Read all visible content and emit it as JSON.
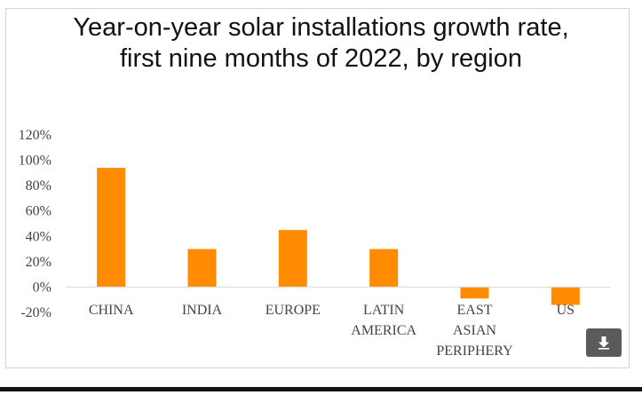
{
  "chart_data": {
    "type": "bar",
    "title": "Year-on-year solar installations growth rate, first nine months of 2022, by region",
    "categories": [
      "CHINA",
      "INDIA",
      "EUROPE",
      "LATIN AMERICA",
      "EAST ASIAN PERIPHERY",
      "US"
    ],
    "category_lines": [
      [
        "CHINA"
      ],
      [
        "INDIA"
      ],
      [
        "EUROPE"
      ],
      [
        "LATIN",
        "AMERICA"
      ],
      [
        "EAST",
        "ASIAN",
        "PERIPHERY"
      ],
      [
        "US"
      ]
    ],
    "values": [
      94,
      30,
      45,
      30,
      -9,
      -14
    ],
    "unit": "%",
    "ylim": [
      -20,
      120
    ],
    "yticks": [
      -20,
      0,
      20,
      40,
      60,
      80,
      100,
      120
    ],
    "ytick_labels": [
      "-20%",
      "0%",
      "20%",
      "40%",
      "60%",
      "80%",
      "100%",
      "120%"
    ],
    "xlabel": "",
    "ylabel": "",
    "grid": false,
    "bar_color": "#FF8C00"
  },
  "controls": {
    "download_icon": "download-icon"
  }
}
